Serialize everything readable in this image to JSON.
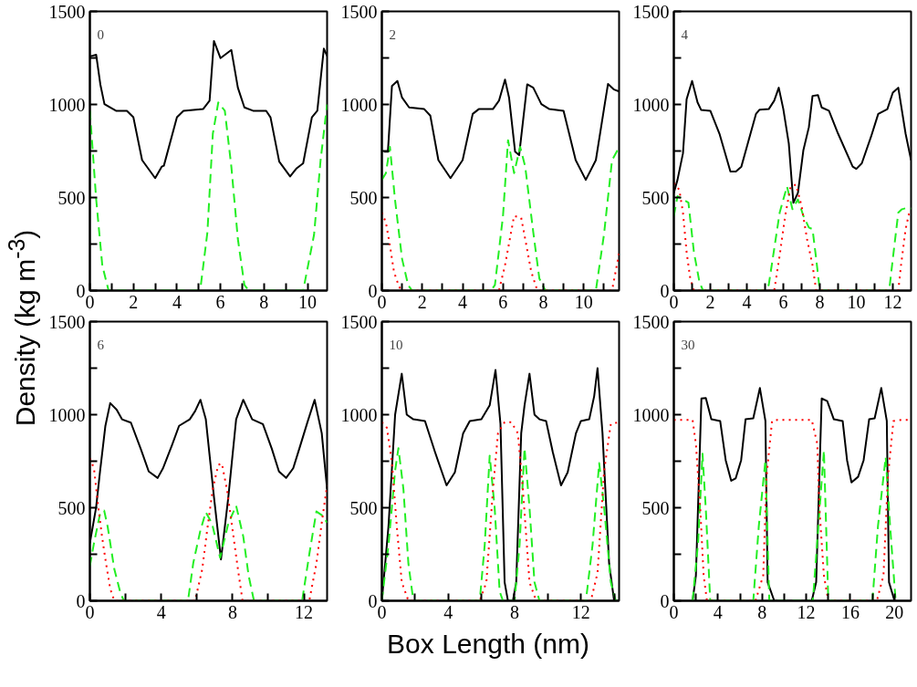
{
  "chart_data": [
    {
      "type": "line",
      "ylabel": "Density (kg m$^{-3}$)",
      "annotations": [
        "0"
      ],
      "xlim": [
        0,
        10.9
      ],
      "xticks": [
        0,
        {
          "value": 1,
          "label": null
        },
        2,
        {
          "value": 3,
          "label": null
        },
        4,
        {
          "value": 5,
          "label": null
        },
        6,
        {
          "value": 7,
          "label": null
        },
        8,
        {
          "value": 9,
          "label": null
        },
        10
      ],
      "ylim": [
        0,
        1500
      ],
      "yticks": [
        0,
        {
          "value": 250,
          "label": null
        },
        500,
        {
          "value": 750,
          "label": null
        },
        1000,
        {
          "value": 1250,
          "label": null
        },
        1500
      ],
      "grid": false,
      "marker": "none",
      "series": [
        {
          "color": "#000000",
          "line_style": "solid",
          "x": [
            0,
            0.29,
            0.48,
            0.67,
            1.2,
            1.7,
            2.0,
            2.4,
            3.0,
            3.3,
            3.4,
            4.0,
            4.3,
            5.2,
            5.5,
            5.7,
            6.0,
            6.5,
            6.8,
            7.1,
            7.5,
            8.1,
            8.3,
            8.7,
            9.2,
            9.5,
            9.8,
            10.2,
            10.45,
            10.75,
            10.9
          ],
          "values": [
            1258,
            1267,
            1108,
            1002,
            966,
            966,
            931,
            701,
            604,
            666,
            671,
            931,
            966,
            975,
            1020,
            1341,
            1249,
            1293,
            1090,
            984,
            966,
            966,
            931,
            693,
            613,
            657,
            684,
            931,
            966,
            1300,
            1260
          ]
        },
        {
          "color": "#22ee22",
          "line_style": "dashed",
          "x": [
            0,
            0.29,
            0.57,
            0.86,
            5.0,
            5.1,
            5.4,
            5.65,
            5.9,
            6.2,
            6.5,
            6.8,
            7.1,
            7.3,
            9.8,
            10.3,
            10.6,
            10.9
          ],
          "values": [
            966,
            490,
            136,
            0,
            0,
            30,
            313,
            843,
            1011,
            966,
            666,
            277,
            30,
            0,
            0,
            300,
            700,
            1000
          ]
        }
      ]
    },
    {
      "type": "line",
      "annotations": [
        "2"
      ],
      "xlim": [
        0,
        11.75
      ],
      "xticks": [
        0,
        {
          "value": 1,
          "label": null
        },
        2,
        {
          "value": 3,
          "label": null
        },
        4,
        {
          "value": 5,
          "label": null
        },
        6,
        {
          "value": 7,
          "label": null
        },
        8,
        {
          "value": 9,
          "label": null
        },
        10,
        {
          "value": 11,
          "label": null
        }
      ],
      "ylim": [
        0,
        1500
      ],
      "yticks": [
        0,
        {
          "value": 250,
          "label": null
        },
        500,
        {
          "value": 750,
          "label": null
        },
        1000,
        {
          "value": 1250,
          "label": null
        },
        1500
      ],
      "grid": false,
      "marker": "none",
      "series": [
        {
          "color": "#000000",
          "line_style": "solid",
          "x": [
            0.1,
            0.3,
            0.5,
            0.77,
            1.0,
            1.35,
            2.1,
            2.4,
            2.8,
            3.4,
            4.0,
            4.5,
            4.8,
            5.5,
            5.8,
            6.1,
            6.3,
            6.6,
            6.8,
            7.2,
            7.5,
            7.9,
            8.3,
            9.0,
            9.6,
            10.1,
            10.6,
            11.0,
            11.2,
            11.5,
            11.75
          ],
          "values": [
            746,
            746,
            1099,
            1126,
            1037,
            984,
            975,
            940,
            701,
            604,
            701,
            949,
            975,
            975,
            1020,
            1134,
            1037,
            746,
            728,
            1108,
            1090,
            1002,
            975,
            966,
            701,
            595,
            701,
            975,
            1110,
            1080,
            1070
          ]
        },
        {
          "color": "#22ee22",
          "line_style": "dashed",
          "x": [
            0,
            0.2,
            0.4,
            0.65,
            1.0,
            1.3,
            1.5,
            5.4,
            5.6,
            6.0,
            6.25,
            6.55,
            6.85,
            7.1,
            7.5,
            7.8,
            8.1,
            10.6,
            11.0,
            11.4,
            11.75
          ],
          "values": [
            595,
            631,
            772,
            490,
            171,
            30,
            0,
            0,
            30,
            401,
            808,
            631,
            772,
            666,
            313,
            65,
            0,
            0,
            300,
            700,
            770
          ]
        },
        {
          "color": "#ff0000",
          "line_style": "dotted",
          "x": [
            0,
            0.2,
            0.4,
            0.6,
            0.85,
            1.0,
            5.8,
            6.1,
            6.4,
            6.55,
            6.9,
            7.1,
            7.4,
            7.7,
            11.4,
            11.75
          ],
          "values": [
            419,
            366,
            242,
            101,
            21,
            0,
            0,
            136,
            313,
            401,
            392,
            277,
            101,
            0,
            0,
            200
          ]
        }
      ]
    },
    {
      "type": "line",
      "annotations": [
        "4"
      ],
      "xlim": [
        0,
        13
      ],
      "xticks": [
        0,
        {
          "value": 1,
          "label": null
        },
        2,
        {
          "value": 3,
          "label": null
        },
        4,
        {
          "value": 5,
          "label": null
        },
        6,
        {
          "value": 7,
          "label": null
        },
        8,
        {
          "value": 9,
          "label": null
        },
        10,
        {
          "value": 11,
          "label": null
        },
        12
      ],
      "ylim": [
        0,
        1500
      ],
      "yticks": [
        0,
        {
          "value": 250,
          "label": null
        },
        500,
        {
          "value": 750,
          "label": null
        },
        1000,
        {
          "value": 1250,
          "label": null
        },
        1500
      ],
      "grid": false,
      "marker": "none",
      "series": [
        {
          "color": "#000000",
          "line_style": "solid",
          "x": [
            0,
            0.2,
            0.5,
            0.7,
            1.0,
            1.3,
            1.5,
            2.0,
            2.5,
            3.1,
            3.4,
            3.7,
            4.1,
            4.5,
            4.7,
            5.2,
            5.5,
            5.75,
            6.0,
            6.3,
            6.55,
            6.8,
            7.1,
            7.4,
            7.6,
            7.9,
            8.1,
            8.5,
            9.0,
            9.8,
            10.0,
            10.3,
            10.8,
            11.2,
            11.7,
            12.0,
            12.3,
            12.7,
            13.0
          ],
          "values": [
            525,
            595,
            737,
            1028,
            1126,
            1011,
            970,
            966,
            843,
            640,
            640,
            666,
            808,
            949,
            972,
            975,
            1020,
            1090,
            975,
            790,
            472,
            525,
            755,
            878,
            1046,
            1050,
            984,
            966,
            843,
            666,
            654,
            684,
            825,
            949,
            975,
            1064,
            1090,
            843,
            701
          ]
        },
        {
          "color": "#22ee22",
          "line_style": "dashed",
          "x": [
            0,
            0.2,
            0.5,
            0.8,
            1.1,
            1.4,
            1.6,
            5.0,
            5.2,
            5.5,
            5.8,
            6.2,
            6.5,
            6.8,
            7.1,
            7.4,
            7.6,
            7.8,
            8.0,
            11.8,
            12.0,
            12.3,
            12.5,
            12.8,
            13.0
          ],
          "values": [
            401,
            507,
            490,
            472,
            207,
            48,
            0,
            0,
            30,
            224,
            419,
            560,
            437,
            490,
            401,
            339,
            330,
            171,
            0,
            0,
            171,
            419,
            437,
            445,
            440
          ]
        },
        {
          "color": "#ff0000",
          "line_style": "dotted",
          "x": [
            0,
            0.3,
            0.5,
            0.7,
            0.9,
            1.1,
            5.5,
            5.8,
            6.1,
            6.4,
            6.7,
            7.0,
            7.3,
            7.6,
            7.8,
            12.3,
            12.45,
            12.7,
            12.9,
            13.0
          ],
          "values": [
            578,
            542,
            419,
            207,
            65,
            0,
            0,
            189,
            401,
            560,
            569,
            454,
            277,
            136,
            0,
            0,
            136,
            330,
            419,
            430
          ]
        }
      ]
    },
    {
      "type": "line",
      "annotations": [
        "6"
      ],
      "xlim": [
        0,
        13.3
      ],
      "xticks": [
        0,
        {
          "value": 2,
          "label": null
        },
        4,
        {
          "value": 6,
          "label": null
        },
        8,
        {
          "value": 10,
          "label": null
        },
        12
      ],
      "ylim": [
        0,
        1500
      ],
      "yticks": [
        0,
        {
          "value": 250,
          "label": null
        },
        500,
        {
          "value": 750,
          "label": null
        },
        1000,
        {
          "value": 1250,
          "label": null
        },
        1500
      ],
      "grid": false,
      "marker": "none",
      "series": [
        {
          "color": "#000000",
          "line_style": "solid",
          "x": [
            0,
            0.35,
            0.57,
            0.87,
            1.14,
            1.5,
            1.8,
            2.3,
            2.85,
            3.3,
            3.8,
            4.1,
            4.6,
            5.0,
            5.6,
            5.9,
            6.2,
            6.5,
            6.96,
            7.35,
            7.76,
            8.2,
            8.6,
            9.1,
            9.7,
            10.2,
            10.6,
            11.0,
            11.4,
            11.8,
            12.2,
            12.6,
            13.0,
            13.3
          ],
          "values": [
            310,
            502,
            695,
            940,
            1062,
            1027,
            975,
            957,
            817,
            695,
            660,
            712,
            835,
            940,
            975,
            1019,
            1080,
            975,
            555,
            222,
            555,
            975,
            1080,
            975,
            949,
            817,
            695,
            660,
            712,
            835,
            960,
            1080,
            900,
            600
          ]
        },
        {
          "color": "#22ee22",
          "line_style": "dashed",
          "x": [
            0,
            0.23,
            0.57,
            0.8,
            1.0,
            1.37,
            1.7,
            1.9,
            5.5,
            5.8,
            6.2,
            6.5,
            6.85,
            7.3,
            7.76,
            8.2,
            8.6,
            8.9,
            9.2,
            11.9,
            12.3,
            12.7,
            13.0,
            13.3
          ],
          "values": [
            187,
            310,
            467,
            485,
            397,
            170,
            47,
            0,
            0,
            205,
            380,
            476,
            415,
            231,
            415,
            511,
            345,
            135,
            0,
            0,
            250,
            480,
            460,
            420
          ]
        },
        {
          "color": "#ff0000",
          "line_style": "dotted",
          "x": [
            0,
            0.23,
            0.45,
            0.68,
            0.9,
            1.14,
            1.37,
            5.9,
            6.3,
            6.6,
            6.9,
            7.2,
            7.4,
            7.7,
            8.0,
            8.3,
            8.56,
            12.3,
            12.7,
            13.0,
            13.3
          ],
          "values": [
            765,
            712,
            520,
            345,
            205,
            65,
            0,
            0,
            170,
            397,
            607,
            730,
            738,
            590,
            380,
            170,
            0,
            0,
            200,
            420,
            620
          ]
        }
      ]
    },
    {
      "type": "line",
      "xlabel": "Box Length (nm)",
      "annotations": [
        "10"
      ],
      "xlim": [
        0,
        14.3
      ],
      "xticks": [
        0,
        {
          "value": 2,
          "label": null
        },
        4,
        {
          "value": 6,
          "label": null
        },
        8,
        {
          "value": 10,
          "label": null
        },
        12,
        {
          "value": 14,
          "label": null
        }
      ],
      "ylim": [
        0,
        1500
      ],
      "yticks": [
        0,
        {
          "value": 250,
          "label": null
        },
        500,
        {
          "value": 750,
          "label": null
        },
        1000,
        {
          "value": 1250,
          "label": null
        },
        1500
      ],
      "grid": false,
      "marker": "none",
      "series": [
        {
          "color": "#000000",
          "line_style": "solid",
          "x": [
            0,
            0.4,
            0.8,
            1.2,
            1.5,
            1.9,
            2.6,
            3.2,
            3.9,
            4.4,
            4.9,
            5.3,
            6.0,
            6.5,
            6.85,
            7.15,
            7.4,
            7.6,
            7.9,
            8.1,
            8.4,
            8.6,
            8.9,
            9.2,
            9.5,
            9.9,
            10.3,
            10.8,
            11.2,
            11.7,
            12.0,
            12.5,
            12.8,
            13.0,
            13.3,
            13.7,
            14.0,
            14.3
          ],
          "values": [
            0,
            400,
            1000,
            1220,
            1000,
            975,
            966,
            800,
            620,
            690,
            900,
            966,
            975,
            1050,
            1240,
            950,
            100,
            0,
            0,
            100,
            900,
            1050,
            1220,
            1000,
            975,
            966,
            800,
            620,
            690,
            900,
            966,
            975,
            1100,
            1250,
            900,
            200,
            0,
            0
          ]
        },
        {
          "color": "#22ee22",
          "line_style": "dashed",
          "x": [
            0,
            0.4,
            0.8,
            1.0,
            1.3,
            1.6,
            1.9,
            5.9,
            6.2,
            6.5,
            6.8,
            7.1,
            7.3,
            8.0,
            8.3,
            8.6,
            8.9,
            9.2,
            9.5,
            12.3,
            12.7,
            13.1,
            13.4,
            13.8,
            14.1,
            14.3
          ],
          "values": [
            0,
            300,
            700,
            820,
            600,
            200,
            0,
            0,
            300,
            780,
            500,
            50,
            0,
            0,
            300,
            820,
            500,
            100,
            0,
            0,
            300,
            740,
            500,
            100,
            0,
            0
          ]
        },
        {
          "color": "#ff0000",
          "line_style": "dotted",
          "x": [
            0,
            0.3,
            0.6,
            0.9,
            1.2,
            1.6,
            5.9,
            6.3,
            6.7,
            7.0,
            7.4,
            7.8,
            8.2,
            8.5,
            8.9,
            9.3,
            12.6,
            13.0,
            13.4,
            13.8,
            14.3
          ],
          "values": [
            960,
            930,
            750,
            400,
            100,
            0,
            0,
            100,
            600,
            900,
            960,
            960,
            900,
            600,
            100,
            0,
            0,
            150,
            700,
            950,
            960
          ]
        }
      ]
    },
    {
      "type": "line",
      "annotations": [
        "30"
      ],
      "xlim": [
        0,
        21.5
      ],
      "xticks": [
        0,
        {
          "value": 2,
          "label": null
        },
        4,
        {
          "value": 6,
          "label": null
        },
        8,
        {
          "value": 10,
          "label": null
        },
        12,
        {
          "value": 14,
          "label": null
        },
        16,
        {
          "value": 18,
          "label": null
        },
        20
      ],
      "ylim": [
        0,
        1500
      ],
      "yticks": [
        0,
        {
          "value": 250,
          "label": null
        },
        500,
        {
          "value": 750,
          "label": null
        },
        1000,
        {
          "value": 1250,
          "label": null
        },
        1500
      ],
      "grid": false,
      "marker": "none",
      "series": [
        {
          "color": "#000000",
          "line_style": "solid",
          "x": [
            1.7,
            2.0,
            2.5,
            2.9,
            3.4,
            4.2,
            4.7,
            5.2,
            5.6,
            6.1,
            6.5,
            7.2,
            7.8,
            8.3,
            8.5,
            9.1,
            12.5,
            12.9,
            13.4,
            13.9,
            14.5,
            15.3,
            15.7,
            16.1,
            16.7,
            17.2,
            17.7,
            18.2,
            18.8,
            19.3,
            19.5,
            20.0
          ],
          "values": [
            0,
            136,
            1087,
            1090,
            975,
            966,
            755,
            645,
            657,
            755,
            975,
            980,
            1143,
            966,
            100,
            0,
            0,
            100,
            1087,
            1073,
            975,
            966,
            755,
            636,
            666,
            755,
            975,
            980,
            1143,
            966,
            100,
            0
          ]
        },
        {
          "color": "#22ee22",
          "line_style": "dashed",
          "x": [
            1.7,
            2.2,
            2.6,
            2.9,
            3.3,
            7.2,
            7.7,
            8.3,
            8.65,
            12.6,
            13.1,
            13.6,
            14.0,
            18.0,
            18.5,
            19.2,
            19.6,
            20.1
          ],
          "values": [
            0,
            313,
            790,
            490,
            0,
            0,
            401,
            755,
            0,
            0,
            401,
            808,
            0,
            0,
            401,
            772,
            401,
            0
          ]
        },
        {
          "color": "#ff0000",
          "line_style": "dotted",
          "x": [
            0,
            1.7,
            2.0,
            2.4,
            2.7,
            3.0,
            7.4,
            8.1,
            8.4,
            8.9,
            9.4,
            12.5,
            13.0,
            13.2,
            13.6,
            14.0,
            18.4,
            19.0,
            19.4,
            19.9,
            20.7,
            21.5
          ],
          "values": [
            972,
            972,
            843,
            490,
            136,
            0,
            0,
            136,
            666,
            966,
            972,
            972,
            843,
            490,
            136,
            0,
            0,
            136,
            666,
            966,
            972,
            972
          ]
        }
      ]
    }
  ]
}
